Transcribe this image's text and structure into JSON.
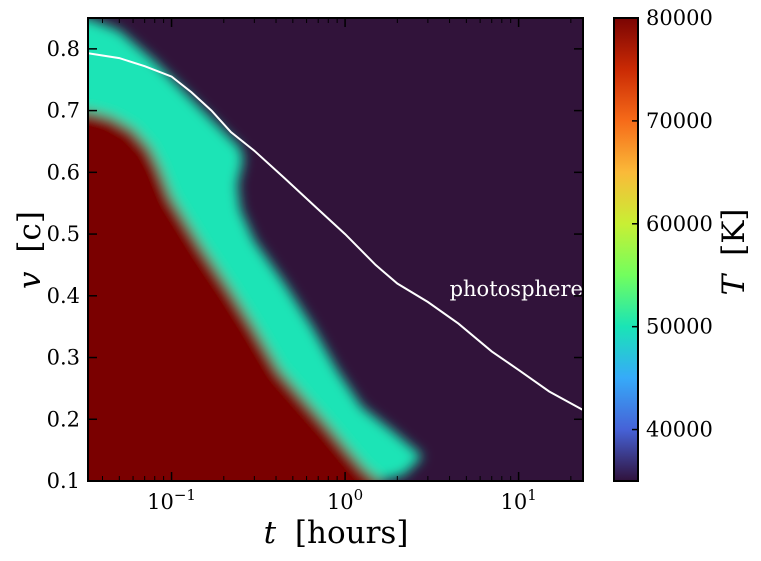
{
  "chart_data": {
    "type": "heatmap",
    "title": "",
    "xlabel_var": "t",
    "xlabel_unit": "[hours]",
    "ylabel_var": "v",
    "ylabel_unit": "[c]",
    "colorbar_label_var": "T",
    "colorbar_label_unit": "[K]",
    "x_scale": "log",
    "xlim": [
      0.033,
      23.5
    ],
    "ylim": [
      0.1,
      0.85
    ],
    "clim": [
      35000,
      80000
    ],
    "x_ticks": [
      {
        "value": 0.1,
        "base": "10",
        "exp": "−1"
      },
      {
        "value": 1,
        "base": "10",
        "exp": "0"
      },
      {
        "value": 10,
        "base": "10",
        "exp": "1"
      }
    ],
    "y_ticks": [
      {
        "value": 0.1,
        "label": "0.1"
      },
      {
        "value": 0.2,
        "label": "0.2"
      },
      {
        "value": 0.3,
        "label": "0.3"
      },
      {
        "value": 0.4,
        "label": "0.4"
      },
      {
        "value": 0.5,
        "label": "0.5"
      },
      {
        "value": 0.6,
        "label": "0.6"
      },
      {
        "value": 0.7,
        "label": "0.7"
      },
      {
        "value": 0.8,
        "label": "0.8"
      }
    ],
    "colorbar_ticks": [
      {
        "value": 40000,
        "label": "40000"
      },
      {
        "value": 50000,
        "label": "50000"
      },
      {
        "value": 60000,
        "label": "60000"
      },
      {
        "value": 70000,
        "label": "70000"
      },
      {
        "value": 80000,
        "label": "80000"
      }
    ],
    "hot_boundary": [
      {
        "t": 0.033,
        "v": 0.7
      },
      {
        "t": 0.045,
        "v": 0.69
      },
      {
        "t": 0.06,
        "v": 0.67
      },
      {
        "t": 0.075,
        "v": 0.64
      },
      {
        "t": 0.085,
        "v": 0.61
      },
      {
        "t": 0.1,
        "v": 0.56
      },
      {
        "t": 0.15,
        "v": 0.48
      },
      {
        "t": 0.22,
        "v": 0.41
      },
      {
        "t": 0.3,
        "v": 0.35
      },
      {
        "t": 0.42,
        "v": 0.28
      },
      {
        "t": 0.6,
        "v": 0.23
      },
      {
        "t": 0.8,
        "v": 0.19
      },
      {
        "t": 1.05,
        "v": 0.15
      },
      {
        "t": 1.3,
        "v": 0.12
      },
      {
        "t": 1.6,
        "v": 0.1
      }
    ],
    "cool_boundary": [
      {
        "t": 0.033,
        "v": 0.85
      },
      {
        "t": 0.05,
        "v": 0.83
      },
      {
        "t": 0.08,
        "v": 0.78
      },
      {
        "t": 0.12,
        "v": 0.73
      },
      {
        "t": 0.18,
        "v": 0.68
      },
      {
        "t": 0.25,
        "v": 0.64
      },
      {
        "t": 0.26,
        "v": 0.62
      },
      {
        "t": 0.24,
        "v": 0.58
      },
      {
        "t": 0.25,
        "v": 0.54
      },
      {
        "t": 0.3,
        "v": 0.49
      },
      {
        "t": 0.45,
        "v": 0.42
      },
      {
        "t": 0.65,
        "v": 0.35
      },
      {
        "t": 0.9,
        "v": 0.28
      },
      {
        "t": 1.25,
        "v": 0.22
      },
      {
        "t": 1.9,
        "v": 0.18
      },
      {
        "t": 2.8,
        "v": 0.14
      },
      {
        "t": 2.2,
        "v": 0.11
      },
      {
        "t": 1.6,
        "v": 0.1
      }
    ],
    "series": [
      {
        "name": "photosphere",
        "color": "#ffffff",
        "t": [
          0.033,
          0.05,
          0.07,
          0.1,
          0.13,
          0.17,
          0.22,
          0.3,
          0.45,
          0.7,
          1.0,
          1.5,
          2.0,
          3.0,
          4.5,
          7.0,
          10.0,
          15.0,
          23.5
        ],
        "v": [
          0.793,
          0.785,
          0.772,
          0.755,
          0.73,
          0.7,
          0.665,
          0.635,
          0.59,
          0.54,
          0.5,
          0.45,
          0.42,
          0.39,
          0.355,
          0.31,
          0.28,
          0.245,
          0.215
        ]
      }
    ],
    "annotation": {
      "text": "photosphere",
      "t": 4.0,
      "v": 0.4
    },
    "colors": {
      "background": "#31133a",
      "hot": "#7a0403",
      "colormap": [
        "#30123b",
        "#4662d7",
        "#36aaf9",
        "#1ae4b6",
        "#72fe5e",
        "#c8ef34",
        "#faba39",
        "#f66b19",
        "#ca2a04",
        "#7a0403"
      ]
    }
  }
}
